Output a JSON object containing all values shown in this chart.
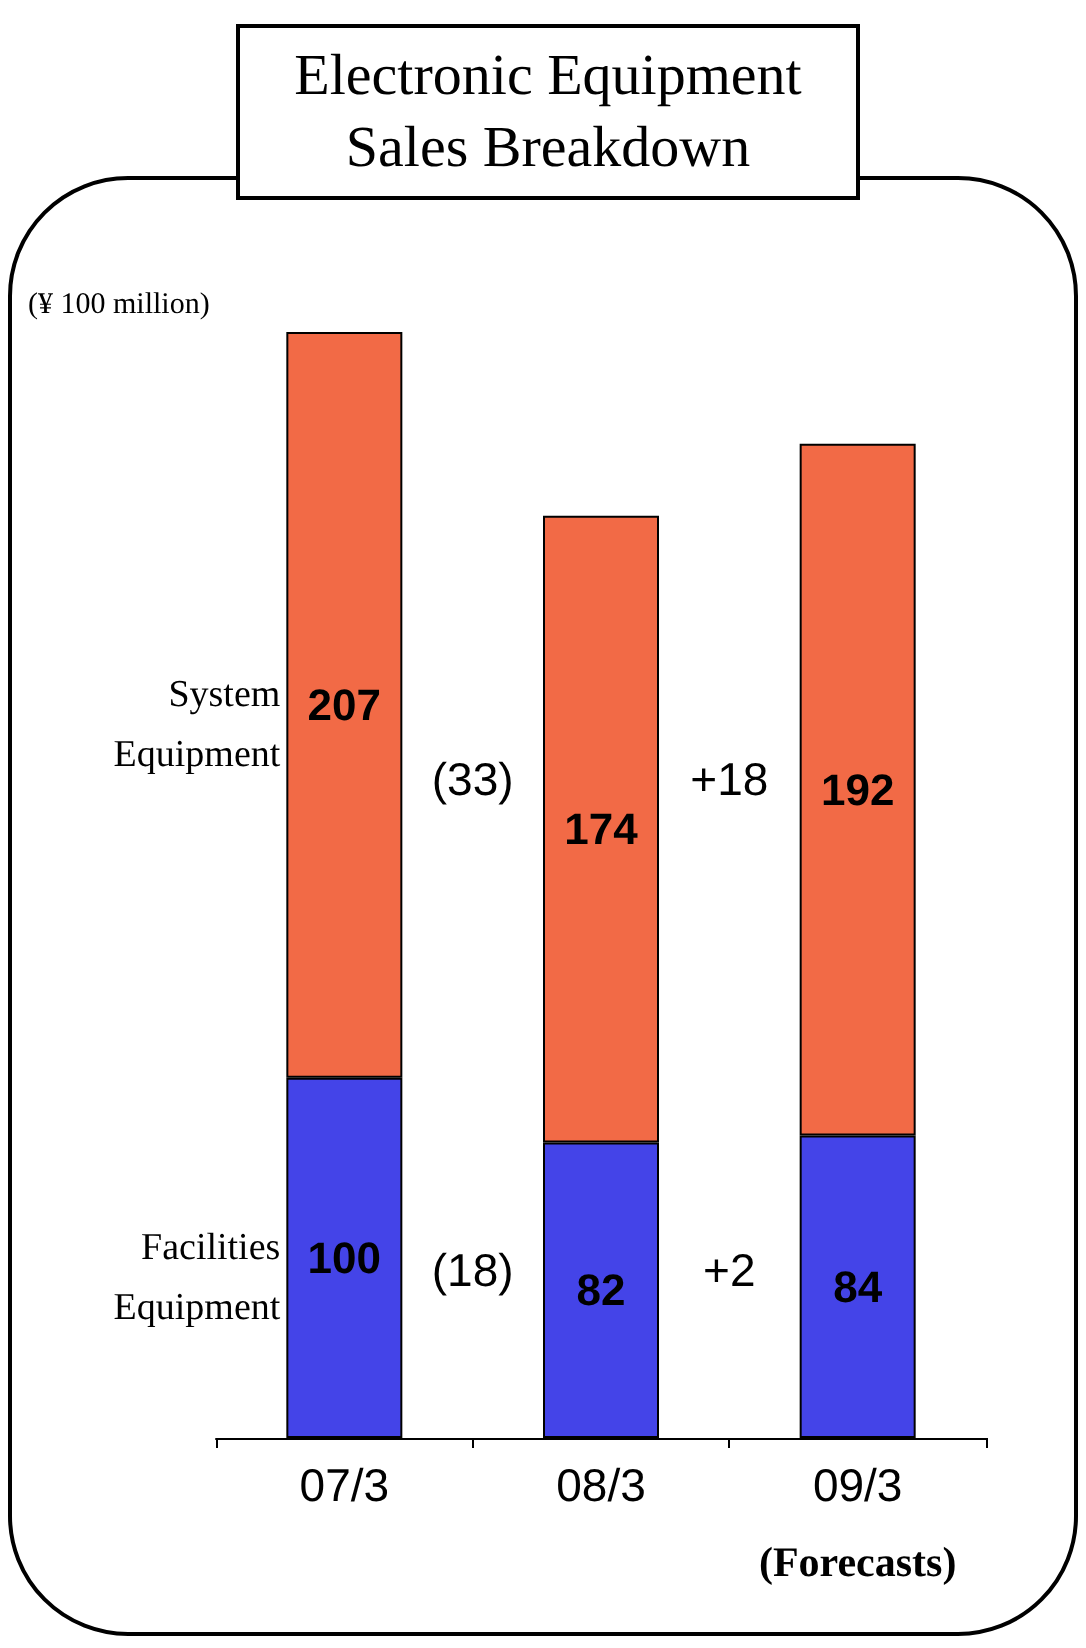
{
  "chart_data": {
    "type": "bar",
    "title": "Electronic Equipment Sales Breakdown",
    "ylabel": "(¥ 100 million)",
    "categories": [
      "07/3",
      "08/3",
      "09/3"
    ],
    "stacked": true,
    "data_labels": true,
    "legend": false,
    "series": [
      {
        "name": "Facilities Equipment",
        "color": "#4444e8",
        "values": [
          100,
          82,
          84
        ]
      },
      {
        "name": "System Equipment",
        "color": "#f26a46",
        "values": [
          207,
          174,
          192
        ]
      }
    ],
    "annotations": [
      "(33)",
      "+18",
      "(18)",
      "+2",
      "(Forecasts)"
    ]
  }
}
